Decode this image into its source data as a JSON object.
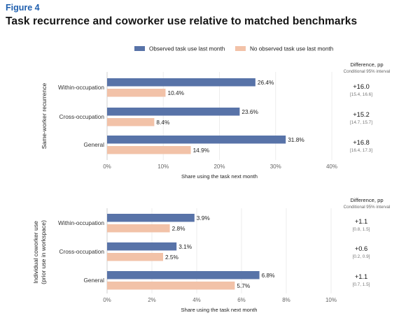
{
  "figure_label": "Figure 4",
  "title": "Task recurrence and coworker use relative to matched benchmarks",
  "colors": {
    "observed": "#5873a8",
    "not_observed": "#f2c2a8"
  },
  "legend": [
    "Observed task use last month",
    "No observed task use last month"
  ],
  "chart_data": [
    {
      "type": "bar",
      "orientation": "horizontal",
      "ylabel": "Same-worker recurrence",
      "xlabel": "Share using the task next month",
      "categories": [
        "Within-occupation",
        "Cross-occupation",
        "General"
      ],
      "xlim": [
        0,
        40
      ],
      "xticks": [
        "0%",
        "10%",
        "20%",
        "30%",
        "40%"
      ],
      "series": [
        {
          "name": "Observed task use last month",
          "values": [
            26.4,
            23.6,
            31.8
          ],
          "labels": [
            "26.4%",
            "23.6%",
            "31.8%"
          ]
        },
        {
          "name": "No observed task use last month",
          "values": [
            10.4,
            8.4,
            14.9
          ],
          "labels": [
            "10.4%",
            "8.4%",
            "14.9%"
          ]
        }
      ],
      "difference": {
        "title": "Difference, pp",
        "subtitle": "Conditional 95% interval",
        "values": [
          "+16.0",
          "+15.2",
          "+16.8"
        ],
        "intervals": [
          "[15.4, 16.6]",
          "[14.7, 15.7]",
          "[16.4, 17.3]"
        ]
      },
      "grid": true
    },
    {
      "type": "bar",
      "orientation": "horizontal",
      "ylabel": [
        "Individual coworker use",
        "(prior use in workspace)"
      ],
      "xlabel": "Share using the task next month",
      "categories": [
        "Within-occupation",
        "Cross-occupation",
        "General"
      ],
      "xlim": [
        0,
        10
      ],
      "xticks": [
        "0%",
        "2%",
        "4%",
        "6%",
        "8%",
        "10%"
      ],
      "series": [
        {
          "name": "Observed task use last month",
          "values": [
            3.9,
            3.1,
            6.8
          ],
          "labels": [
            "3.9%",
            "3.1%",
            "6.8%"
          ]
        },
        {
          "name": "No observed task use last month",
          "values": [
            2.8,
            2.5,
            5.7
          ],
          "labels": [
            "2.8%",
            "2.5%",
            "5.7%"
          ]
        }
      ],
      "difference": {
        "title": "Difference, pp",
        "subtitle": "Conditional 95% interval",
        "values": [
          "+1.1",
          "+0.6",
          "+1.1"
        ],
        "intervals": [
          "[0.8, 1.5]",
          "[0.2, 0.9]",
          "[0.7, 1.5]"
        ]
      },
      "grid": true
    }
  ]
}
